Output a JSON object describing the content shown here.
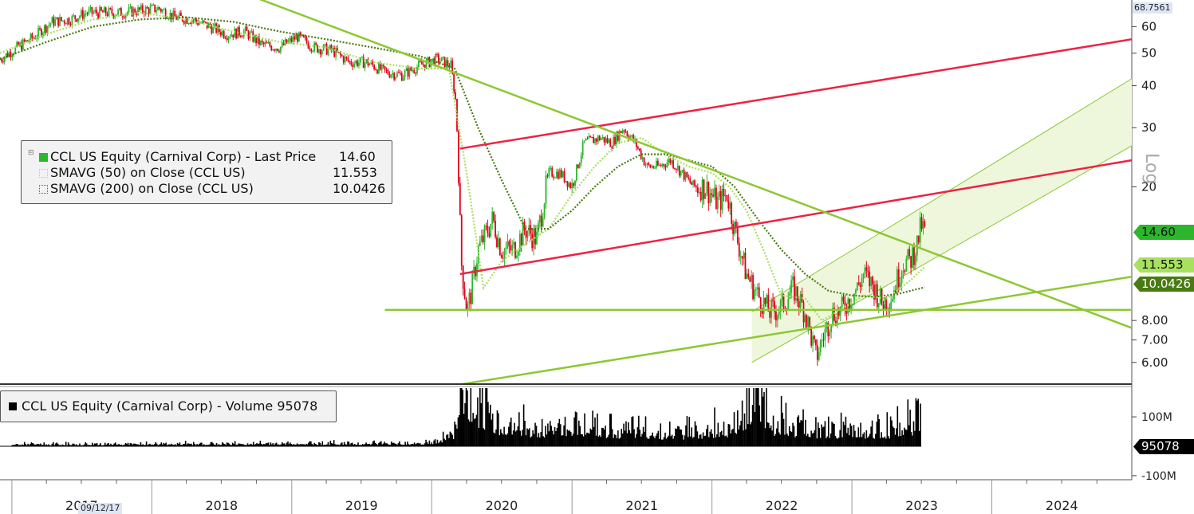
{
  "legend": {
    "price_label": "CCL US Equity (Carnival Corp) - Last Price",
    "price_value": "14.60",
    "sma50_label": "SMAVG (50)  on Close (CCL US)",
    "sma50_value": "11.553",
    "sma200_label": "SMAVG (200)  on Close (CCL US)",
    "sma200_value": "10.0426",
    "volume_label": "CCL US Equity (Carnival Corp) - Volume 95078"
  },
  "tags": {
    "last_price": "14.60",
    "sma50": "11.553",
    "sma200": "10.0426",
    "volume": "95078",
    "max_value": "68.7561",
    "scale_label": "Log",
    "date_flag": "09/12/17"
  },
  "colors": {
    "price_up": "#2db52d",
    "price_down": "#e0001b",
    "sma50": "#a8e060",
    "sma200": "#4a7a12",
    "trend_green": "#8cc832",
    "trend_red": "#ee2244",
    "channel_fill": "#eef7dc",
    "volume": "#000000"
  },
  "chart_data": {
    "type": "line",
    "scale": "log",
    "ylim": [
      5.2,
      72
    ],
    "xlim": [
      "2016-12-01",
      "2024-12-31"
    ],
    "y_ticks": [
      6,
      7,
      8,
      20,
      30,
      40,
      50,
      60
    ],
    "y_tick_labels": [
      "6.00",
      "7.00",
      "8.00",
      "20",
      "30",
      "40",
      "50",
      "60"
    ],
    "x_ticks": [
      "2017",
      "2018",
      "2019",
      "2020",
      "2021",
      "2022",
      "2023",
      "2024"
    ],
    "volume_ticks": [
      "100M",
      "-100M"
    ],
    "legend_position": "left",
    "series": [
      {
        "name": "CCL US Equity (Carnival Corp) - Last Price",
        "type": "candlestick",
        "x": [
          "2016-12-01",
          "2017-01-15",
          "2017-03-01",
          "2017-04-15",
          "2017-06-01",
          "2017-07-15",
          "2017-09-01",
          "2017-10-15",
          "2017-12-01",
          "2018-01-20",
          "2018-03-01",
          "2018-04-15",
          "2018-06-01",
          "2018-07-15",
          "2018-09-01",
          "2018-10-15",
          "2018-12-01",
          "2019-01-15",
          "2019-03-01",
          "2019-04-15",
          "2019-06-01",
          "2019-07-15",
          "2019-09-01",
          "2019-10-15",
          "2019-12-01",
          "2020-01-15",
          "2020-02-20",
          "2020-03-05",
          "2020-03-18",
          "2020-04-02",
          "2020-04-15",
          "2020-05-01",
          "2020-06-08",
          "2020-07-01",
          "2020-08-01",
          "2020-09-01",
          "2020-10-01",
          "2020-11-01",
          "2020-12-01",
          "2021-01-01",
          "2021-02-01",
          "2021-03-15",
          "2021-04-15",
          "2021-05-15",
          "2021-06-15",
          "2021-07-15",
          "2021-08-15",
          "2021-09-15",
          "2021-10-15",
          "2021-11-15",
          "2021-12-15",
          "2022-01-15",
          "2022-02-10",
          "2022-03-01",
          "2022-04-01",
          "2022-05-01",
          "2022-06-01",
          "2022-06-20",
          "2022-07-01",
          "2022-08-01",
          "2022-09-01",
          "2022-09-30",
          "2022-10-15",
          "2022-11-10",
          "2022-12-01",
          "2023-01-01",
          "2023-01-15",
          "2023-02-01",
          "2023-03-01",
          "2023-03-20",
          "2023-04-15",
          "2023-05-15",
          "2023-06-01",
          "2023-06-20",
          "2023-07-01",
          "2023-07-10"
        ],
        "values": [
          48,
          52,
          56,
          62,
          63,
          66,
          66,
          66,
          67,
          68,
          64,
          63,
          60,
          57,
          58,
          53,
          52,
          56,
          52,
          51,
          47,
          47,
          44,
          43,
          46,
          48,
          46,
          35,
          12,
          8.5,
          10,
          13,
          16,
          13,
          13,
          15,
          14,
          22,
          22,
          20,
          27,
          28,
          27,
          30,
          27,
          23,
          23,
          24,
          22,
          20,
          20,
          18,
          19,
          15,
          11,
          9.5,
          8.5,
          8.6,
          8.8,
          10,
          8.5,
          6.2,
          7,
          8.4,
          8.5,
          9.5,
          10,
          11,
          10,
          9,
          9.5,
          12,
          12,
          13.5,
          15.5,
          14.6
        ]
      },
      {
        "name": "SMAVG (50)  on Close (CCL US)",
        "x": [
          "2016-12-01",
          "2017-04-01",
          "2017-08-01",
          "2017-12-01",
          "2018-04-01",
          "2018-08-01",
          "2018-12-01",
          "2019-04-01",
          "2019-08-01",
          "2019-12-01",
          "2020-02-15",
          "2020-04-01",
          "2020-05-15",
          "2020-07-01",
          "2020-09-01",
          "2020-11-01",
          "2021-01-01",
          "2021-03-01",
          "2021-05-01",
          "2021-07-01",
          "2021-09-01",
          "2021-11-01",
          "2022-01-01",
          "2022-02-15",
          "2022-04-01",
          "2022-05-15",
          "2022-07-01",
          "2022-09-01",
          "2022-10-15",
          "2022-12-01",
          "2023-02-01",
          "2023-04-01",
          "2023-06-01",
          "2023-07-10"
        ],
        "values": [
          50,
          57,
          63,
          66,
          63,
          58,
          54,
          52,
          47,
          45,
          45,
          22,
          10,
          12,
          13.5,
          15,
          19,
          23,
          27,
          28,
          25,
          23,
          22,
          20,
          17,
          13,
          9.5,
          9.3,
          8,
          8.6,
          9.5,
          9.3,
          10.5,
          11.553
        ]
      },
      {
        "name": "SMAVG (200)  on Close (CCL US)",
        "x": [
          "2016-12-01",
          "2017-04-01",
          "2017-08-01",
          "2017-12-01",
          "2018-04-01",
          "2018-08-01",
          "2018-12-01",
          "2019-04-01",
          "2019-08-01",
          "2019-12-01",
          "2020-03-01",
          "2020-05-01",
          "2020-07-01",
          "2020-09-01",
          "2020-11-01",
          "2021-01-01",
          "2021-03-01",
          "2021-05-01",
          "2021-07-01",
          "2021-09-01",
          "2021-11-01",
          "2022-01-01",
          "2022-03-01",
          "2022-05-01",
          "2022-07-01",
          "2022-09-01",
          "2022-11-01",
          "2023-01-01",
          "2023-03-01",
          "2023-05-01",
          "2023-07-10"
        ],
        "values": [
          48,
          54,
          60,
          63,
          64,
          62,
          58,
          55,
          52,
          49,
          45,
          30,
          21,
          15,
          15,
          17,
          20,
          23,
          25,
          25,
          24,
          23,
          20,
          16,
          13,
          11,
          9.8,
          9.5,
          9.4,
          9.6,
          10.0426
        ]
      }
    ],
    "trendlines": [
      {
        "name": "upper-red",
        "color": "red",
        "x": [
          "2020-03-15",
          "2024-12-31"
        ],
        "y": [
          26,
          55
        ]
      },
      {
        "name": "lower-red",
        "color": "red",
        "x": [
          "2020-03-15",
          "2024-12-31"
        ],
        "y": [
          11,
          24
        ]
      },
      {
        "name": "falling-green",
        "color": "green",
        "x": [
          "2018-07-01",
          "2024-12-31"
        ],
        "y": [
          80,
          7.6
        ]
      },
      {
        "name": "support-green",
        "color": "green",
        "x": [
          "2019-09-01",
          "2024-12-31"
        ],
        "y": [
          8.6,
          8.6
        ]
      },
      {
        "name": "rising-green",
        "color": "green",
        "x": [
          "2020-01-01",
          "2024-12-31"
        ],
        "y": [
          5.0,
          10.8
        ]
      }
    ],
    "channel": {
      "x": [
        "2022-04-15",
        "2024-12-31"
      ],
      "upper": [
        8.5,
        42
      ],
      "lower": [
        6.0,
        26.5
      ]
    },
    "volume": {
      "name": "CCL US Equity (Carnival Corp) - Volume",
      "last": 95078,
      "x": [
        "2017-01-01",
        "2017-07-01",
        "2018-01-01",
        "2018-07-01",
        "2019-01-01",
        "2019-07-01",
        "2020-01-01",
        "2020-03-01",
        "2020-03-20",
        "2020-04-15",
        "2020-06-01",
        "2020-08-01",
        "2020-10-01",
        "2020-12-01",
        "2021-02-01",
        "2021-04-01",
        "2021-06-01",
        "2021-08-01",
        "2021-10-01",
        "2021-12-01",
        "2022-02-01",
        "2022-03-15",
        "2022-05-01",
        "2022-06-01",
        "2022-07-01",
        "2022-09-01",
        "2022-11-01",
        "2023-01-01",
        "2023-03-01",
        "2023-05-01",
        "2023-07-01"
      ],
      "values": [
        5,
        5,
        6,
        6,
        7,
        7,
        9,
        40,
        170,
        90,
        70,
        50,
        45,
        55,
        55,
        45,
        40,
        38,
        35,
        40,
        45,
        70,
        170,
        60,
        55,
        45,
        40,
        45,
        40,
        45,
        70
      ]
    }
  }
}
